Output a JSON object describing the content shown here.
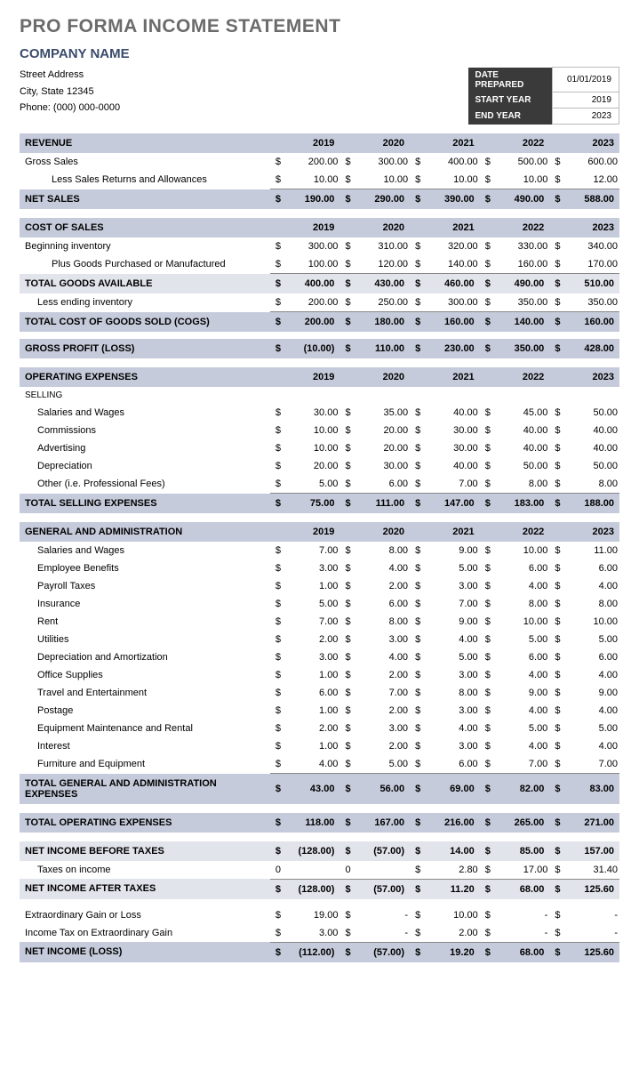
{
  "title": "PRO FORMA INCOME STATEMENT",
  "company": "COMPANY NAME",
  "address": {
    "street": "Street Address",
    "citystate": "City, State  12345",
    "phone": "Phone: (000) 000-0000"
  },
  "meta": {
    "date_prepared_label": "DATE PREPARED",
    "date_prepared": "01/01/2019",
    "start_year_label": "START YEAR",
    "start_year": "2019",
    "end_year_label": "END YEAR",
    "end_year": "2023"
  },
  "years": [
    "2019",
    "2020",
    "2021",
    "2022",
    "2023"
  ],
  "sections": {
    "revenue": {
      "header": "REVENUE"
    },
    "cost": {
      "header": "COST OF SALES"
    },
    "opex": {
      "header": "OPERATING EXPENSES"
    },
    "ga": {
      "header": "GENERAL AND ADMINISTRATION"
    }
  },
  "rows": {
    "gross_sales": {
      "label": "Gross Sales",
      "v": [
        "200.00",
        "300.00",
        "400.00",
        "500.00",
        "600.00"
      ]
    },
    "less_returns": {
      "label": "Less Sales Returns and Allowances",
      "v": [
        "10.00",
        "10.00",
        "10.00",
        "10.00",
        "12.00"
      ]
    },
    "net_sales": {
      "label": "NET SALES",
      "v": [
        "190.00",
        "290.00",
        "390.00",
        "490.00",
        "588.00"
      ]
    },
    "beg_inv": {
      "label": "Beginning inventory",
      "v": [
        "300.00",
        "310.00",
        "320.00",
        "330.00",
        "340.00"
      ]
    },
    "plus_goods": {
      "label": "Plus Goods Purchased or Manufactured",
      "v": [
        "100.00",
        "120.00",
        "140.00",
        "160.00",
        "170.00"
      ]
    },
    "total_goods": {
      "label": "TOTAL GOODS AVAILABLE",
      "v": [
        "400.00",
        "430.00",
        "460.00",
        "490.00",
        "510.00"
      ]
    },
    "less_end_inv": {
      "label": "Less ending inventory",
      "v": [
        "200.00",
        "250.00",
        "300.00",
        "350.00",
        "350.00"
      ]
    },
    "cogs": {
      "label": "TOTAL COST OF GOODS SOLD (COGS)",
      "v": [
        "200.00",
        "180.00",
        "160.00",
        "140.00",
        "160.00"
      ]
    },
    "gross_profit": {
      "label": "GROSS PROFIT (LOSS)",
      "v": [
        "(10.00)",
        "110.00",
        "230.00",
        "350.00",
        "428.00"
      ]
    },
    "selling_h": {
      "label": "SELLING"
    },
    "sell_wages": {
      "label": "Salaries and Wages",
      "v": [
        "30.00",
        "35.00",
        "40.00",
        "45.00",
        "50.00"
      ]
    },
    "sell_comm": {
      "label": "Commissions",
      "v": [
        "10.00",
        "20.00",
        "30.00",
        "40.00",
        "40.00"
      ]
    },
    "sell_adv": {
      "label": "Advertising",
      "v": [
        "10.00",
        "20.00",
        "30.00",
        "40.00",
        "40.00"
      ]
    },
    "sell_dep": {
      "label": "Depreciation",
      "v": [
        "20.00",
        "30.00",
        "40.00",
        "50.00",
        "50.00"
      ]
    },
    "sell_other": {
      "label": "Other  (i.e. Professional Fees)",
      "v": [
        "5.00",
        "6.00",
        "7.00",
        "8.00",
        "8.00"
      ]
    },
    "sell_total": {
      "label": "TOTAL SELLING EXPENSES",
      "v": [
        "75.00",
        "111.00",
        "147.00",
        "183.00",
        "188.00"
      ]
    },
    "ga_wages": {
      "label": "Salaries and Wages",
      "v": [
        "7.00",
        "8.00",
        "9.00",
        "10.00",
        "11.00"
      ]
    },
    "ga_benefits": {
      "label": "Employee Benefits",
      "v": [
        "3.00",
        "4.00",
        "5.00",
        "6.00",
        "6.00"
      ]
    },
    "ga_payroll": {
      "label": "Payroll Taxes",
      "v": [
        "1.00",
        "2.00",
        "3.00",
        "4.00",
        "4.00"
      ]
    },
    "ga_ins": {
      "label": "Insurance",
      "v": [
        "5.00",
        "6.00",
        "7.00",
        "8.00",
        "8.00"
      ]
    },
    "ga_rent": {
      "label": "Rent",
      "v": [
        "7.00",
        "8.00",
        "9.00",
        "10.00",
        "10.00"
      ]
    },
    "ga_util": {
      "label": "Utilities",
      "v": [
        "2.00",
        "3.00",
        "4.00",
        "5.00",
        "5.00"
      ]
    },
    "ga_dep": {
      "label": "Depreciation and Amortization",
      "v": [
        "3.00",
        "4.00",
        "5.00",
        "6.00",
        "6.00"
      ]
    },
    "ga_supplies": {
      "label": "Office Supplies",
      "v": [
        "1.00",
        "2.00",
        "3.00",
        "4.00",
        "4.00"
      ]
    },
    "ga_travel": {
      "label": "Travel and Entertainment",
      "v": [
        "6.00",
        "7.00",
        "8.00",
        "9.00",
        "9.00"
      ]
    },
    "ga_postage": {
      "label": "Postage",
      "v": [
        "1.00",
        "2.00",
        "3.00",
        "4.00",
        "4.00"
      ]
    },
    "ga_equip": {
      "label": "Equipment Maintenance and Rental",
      "v": [
        "2.00",
        "3.00",
        "4.00",
        "5.00",
        "5.00"
      ]
    },
    "ga_interest": {
      "label": "Interest",
      "v": [
        "1.00",
        "2.00",
        "3.00",
        "4.00",
        "4.00"
      ]
    },
    "ga_furn": {
      "label": "Furniture and Equipment",
      "v": [
        "4.00",
        "5.00",
        "6.00",
        "7.00",
        "7.00"
      ]
    },
    "ga_total": {
      "label": "TOTAL GENERAL AND ADMINISTRATION EXPENSES",
      "v": [
        "43.00",
        "56.00",
        "69.00",
        "82.00",
        "83.00"
      ]
    },
    "opex_total": {
      "label": "TOTAL OPERATING EXPENSES",
      "v": [
        "118.00",
        "167.00",
        "216.00",
        "265.00",
        "271.00"
      ]
    },
    "ni_before": {
      "label": "NET INCOME BEFORE TAXES",
      "v": [
        "(128.00)",
        "(57.00)",
        "14.00",
        "85.00",
        "157.00"
      ]
    },
    "taxes": {
      "label": "Taxes on income",
      "c": [
        "0",
        "0",
        "$",
        "$",
        "$"
      ],
      "v": [
        "",
        "",
        "2.80",
        "17.00",
        "31.40"
      ]
    },
    "ni_after": {
      "label": "NET INCOME AFTER TAXES",
      "v": [
        "(128.00)",
        "(57.00)",
        "11.20",
        "68.00",
        "125.60"
      ]
    },
    "extra_gain": {
      "label": "Extraordinary Gain or Loss",
      "v": [
        "19.00",
        "-",
        "10.00",
        "-",
        "-"
      ]
    },
    "extra_tax": {
      "label": "Income Tax on Extraordinary Gain",
      "v": [
        "3.00",
        "-",
        "2.00",
        "-",
        "-"
      ]
    },
    "ni_final": {
      "label": "NET INCOME (LOSS)",
      "v": [
        "(112.00)",
        "(57.00)",
        "19.20",
        "68.00",
        "125.60"
      ]
    }
  },
  "colors": {
    "header_bg": "#c6cbdb",
    "sub_bg": "#e2e4ec",
    "meta_bg": "#3a3a3a"
  }
}
